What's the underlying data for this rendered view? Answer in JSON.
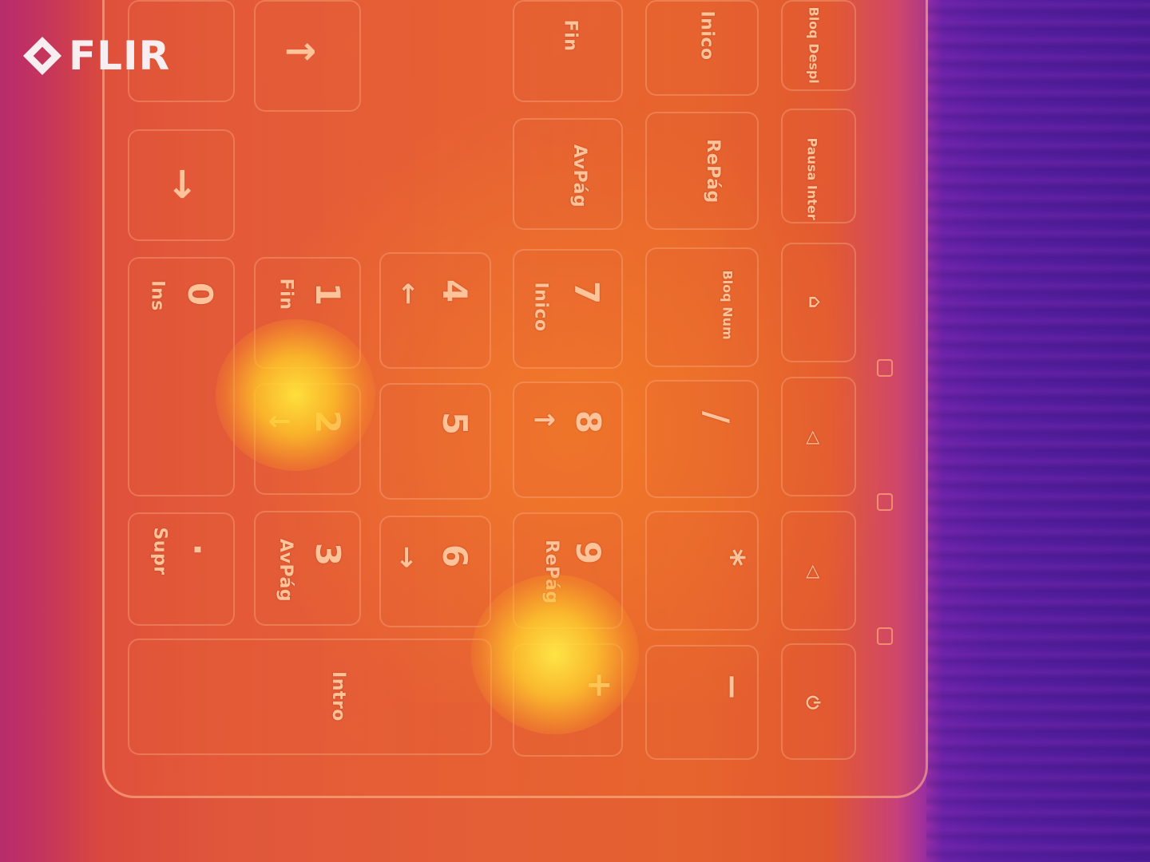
{
  "camera": {
    "brand": "FLIR"
  },
  "colors": {
    "hot": "#ffe24a",
    "warm": "#e4612f",
    "cool": "#4a1a96",
    "label": "#ffc39a"
  },
  "keys": {
    "arrow_right": "→",
    "arrow_down": "↓",
    "fn_top": "Fin",
    "inico_top": "Inico",
    "bloq_despl": "Bloq Despl",
    "avpag_top": "AvPág",
    "repag_top": "RePág",
    "pausa_inter": "Pausa Inter",
    "k0": "0",
    "k0_sub": "Ins",
    "k1": "1",
    "k1_sub": "Fin",
    "k4": "4",
    "k4_sub": "←",
    "k7": "7",
    "k7_sub": "Inico",
    "bloq_num": "Bloq Num",
    "k2": "2",
    "k2_sub": "↓",
    "k5": "5",
    "k8": "8",
    "k8_sub": "↑",
    "slash": "/",
    "dot": ".",
    "dot_sub": "Supr",
    "k3": "3",
    "k3_sub": "AvPág",
    "k6": "6",
    "k6_sub": "→",
    "k9": "9",
    "k9_sub": "RePág",
    "star": "*",
    "enter": "Intro",
    "plus": "+",
    "minus": "−"
  }
}
